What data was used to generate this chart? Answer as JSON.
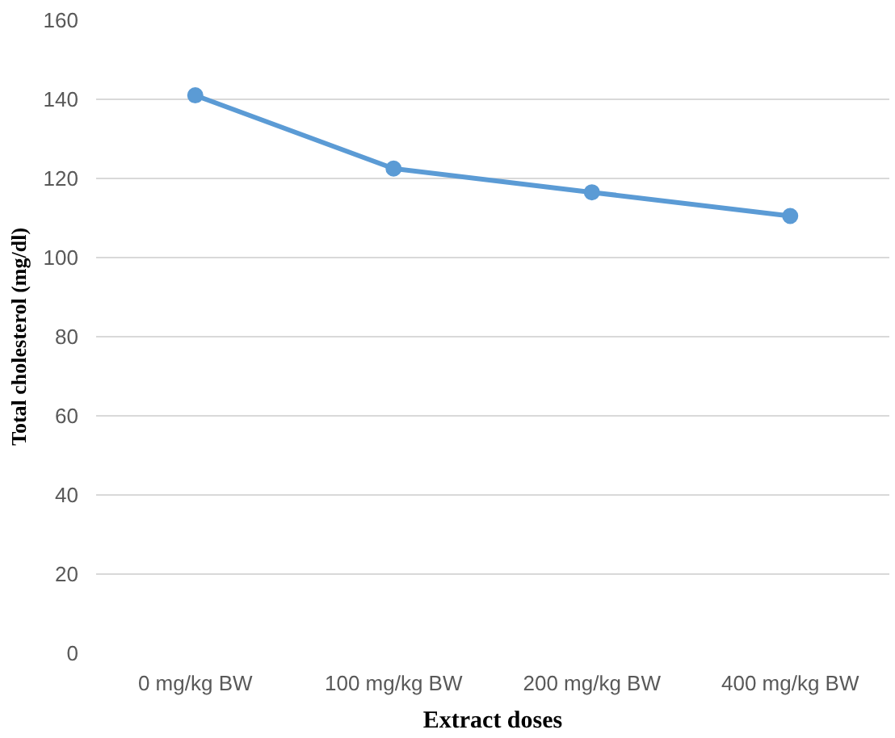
{
  "chart_data": {
    "type": "line",
    "xlabel": "Extract doses",
    "ylabel": "Total cholesterol (mg/dl)",
    "categories": [
      "0 mg/kg BW",
      "100 mg/kg BW",
      "200 mg/kg BW",
      "400 mg/kg BW"
    ],
    "series": [
      {
        "color": "#5b9bd5",
        "values": [
          141,
          122.5,
          116.5,
          110.5
        ]
      }
    ],
    "ylim": [
      0,
      160
    ],
    "yticks": [
      0,
      20,
      40,
      60,
      80,
      100,
      120,
      140,
      160
    ],
    "grid": "y",
    "marker": "circle",
    "line_style": "solid"
  }
}
